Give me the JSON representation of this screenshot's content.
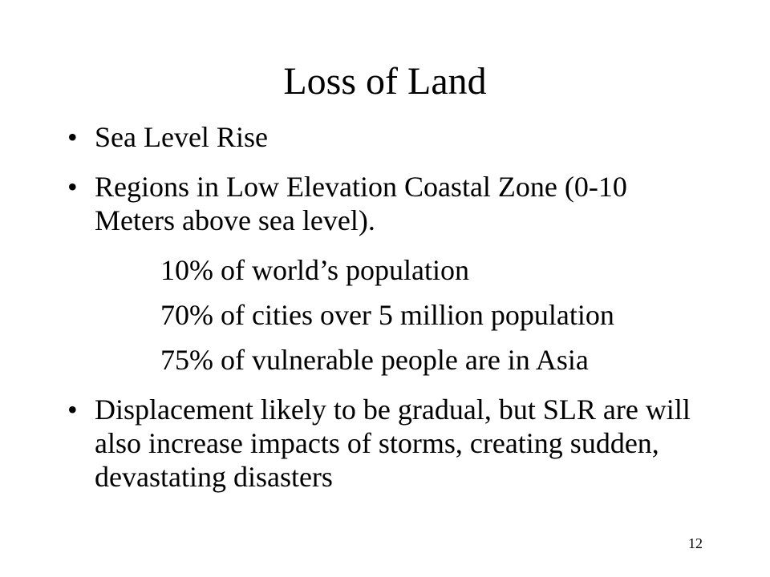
{
  "slide": {
    "title": "Loss of Land",
    "bullets": [
      {
        "marker": "•",
        "text": "Sea Level Rise"
      },
      {
        "marker": "•",
        "text": "Regions in Low Elevation Coastal Zone (0-10 Meters above sea level)."
      },
      {
        "marker": "•",
        "text": "Displacement likely to be gradual, but SLR are will also increase impacts of storms, creating sudden, devastating disasters"
      }
    ],
    "sub_items": [
      "10% of world’s population",
      "70% of cities over 5 million population",
      "75% of vulnerable people are in Asia"
    ],
    "page_number": "12"
  }
}
